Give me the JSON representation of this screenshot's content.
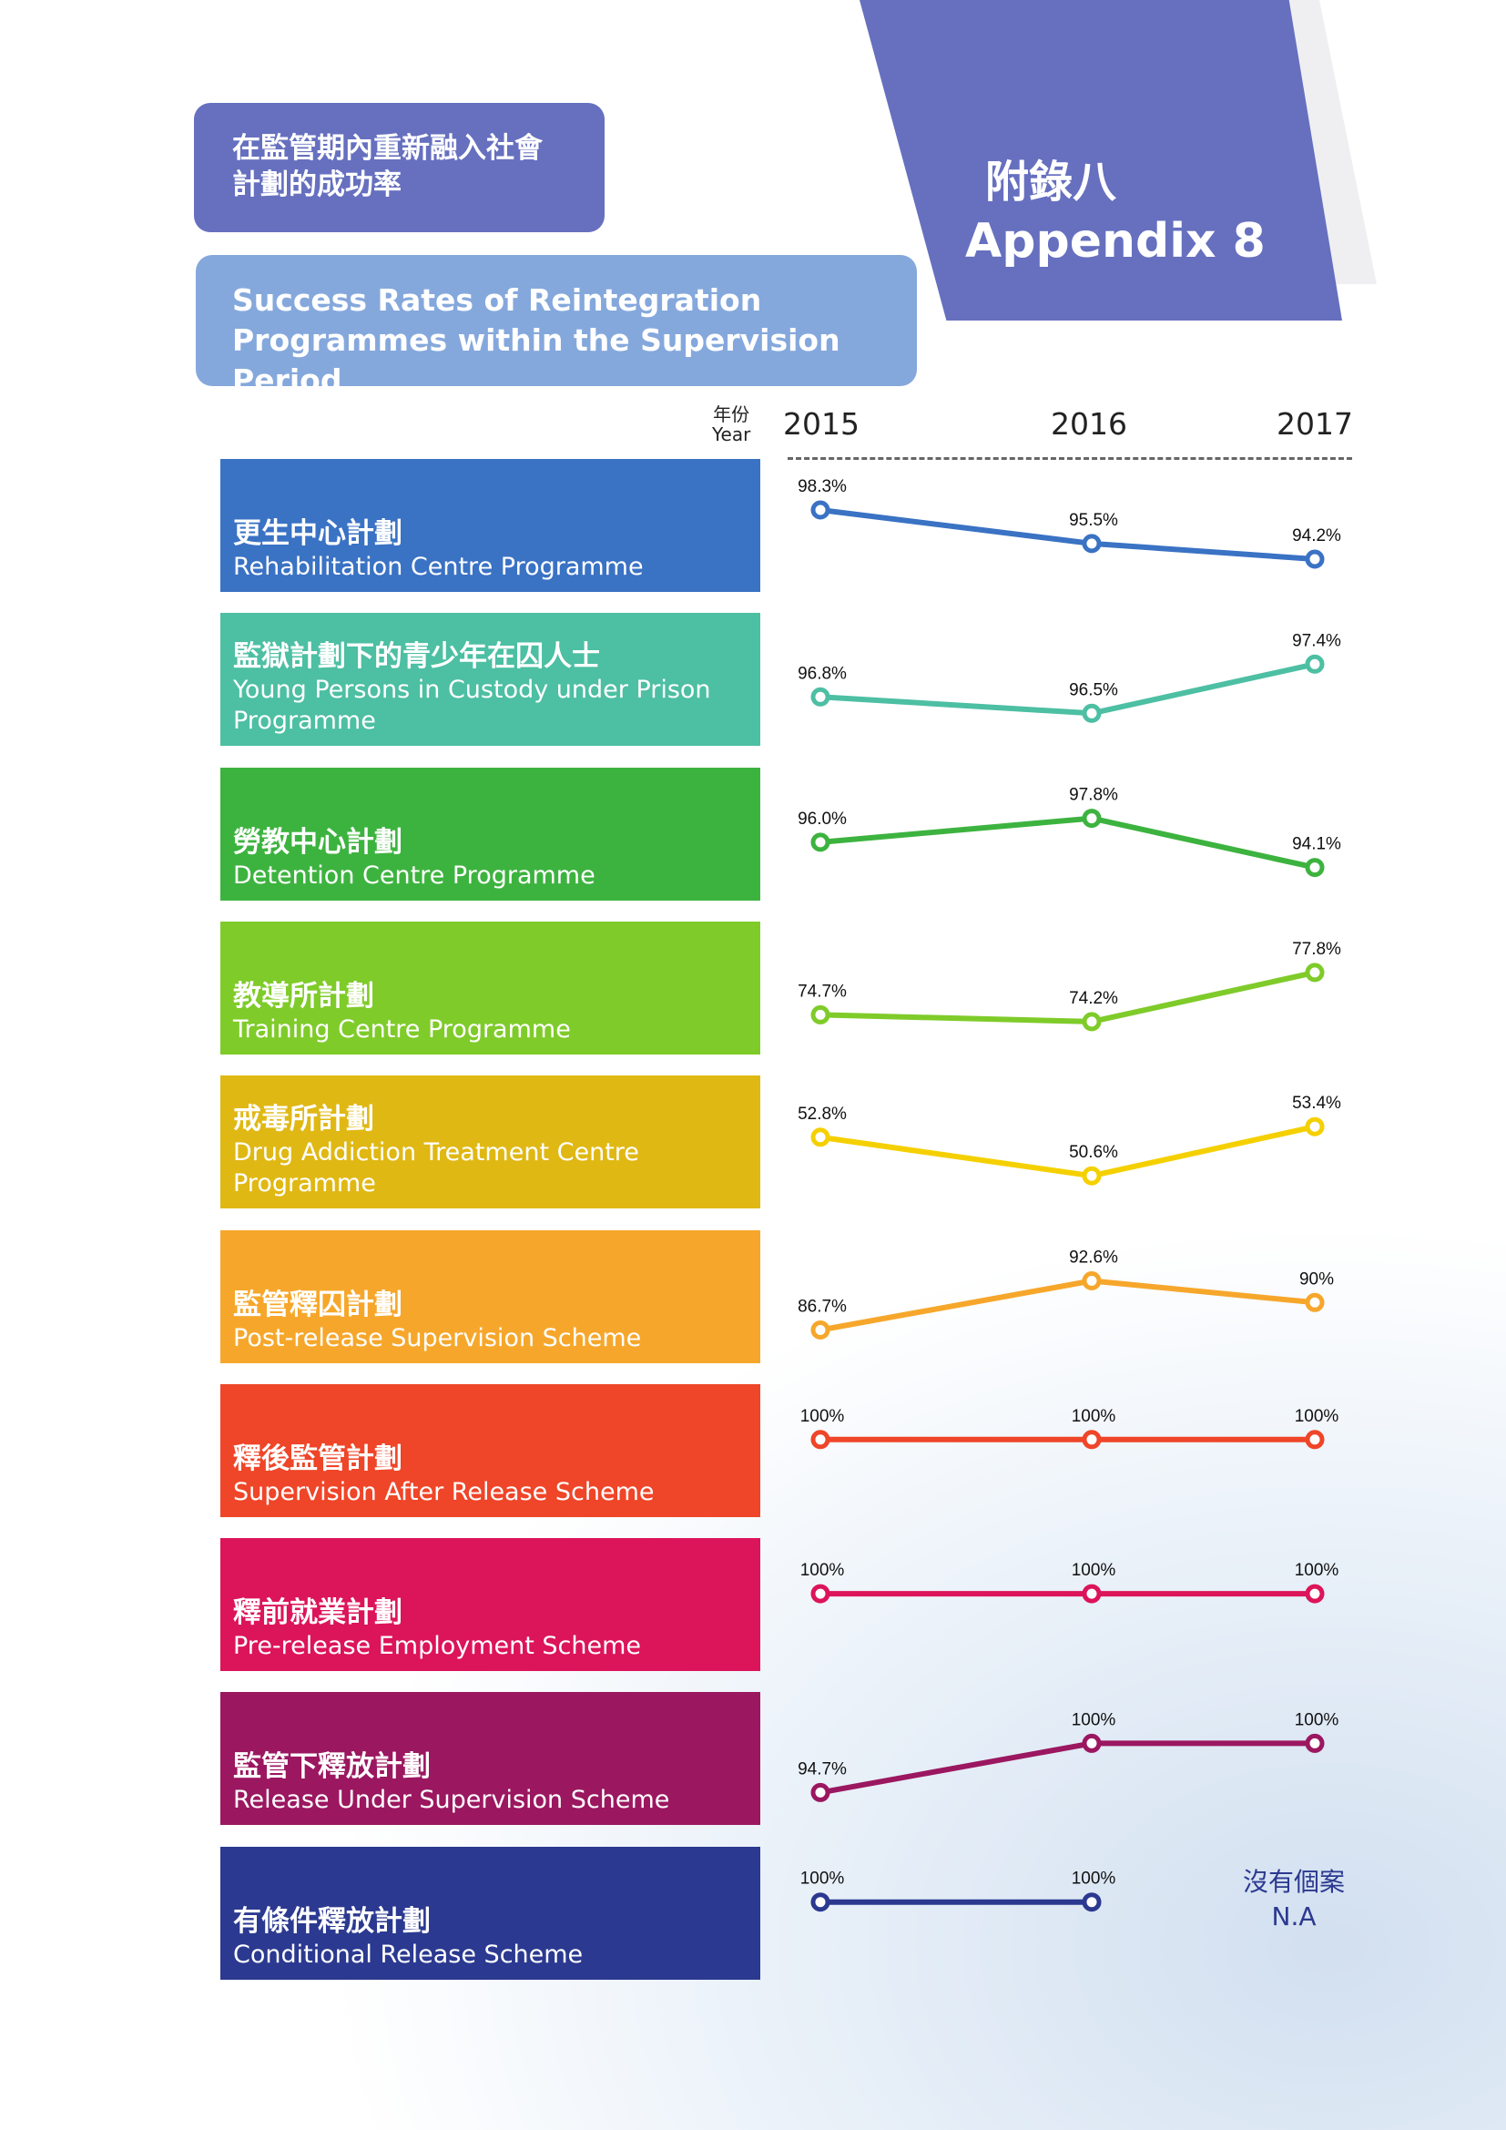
{
  "header": {
    "title_zh": "在監管期內重新融入社會計劃的成功率",
    "title_zh_line1": "在監管期內重新融入社會",
    "title_zh_line2": "計劃的成功率",
    "title_en_line1": "Success Rates of Reintegration",
    "title_en_line2": "Programmes within the Supervision Period",
    "appendix_zh": "附錄八",
    "appendix_en": "Appendix 8"
  },
  "chart_data": {
    "type": "line",
    "x_label_zh": "年份",
    "x_label_en": "Year",
    "x": [
      "2015",
      "2016",
      "2017"
    ],
    "grid": false,
    "series": [
      {
        "name_zh": "更生中心計劃",
        "name": "Rehabilitation Centre Programme",
        "color": "#3a72c4",
        "values": [
          98.3,
          95.5,
          94.2
        ],
        "labels": [
          "98.3%",
          "95.5%",
          "94.2%"
        ]
      },
      {
        "name_zh": "監獄計劃下的青少年在囚人士",
        "name": "Young Persons in Custody under Prison Programme",
        "color": "#4dbfa3",
        "values": [
          96.8,
          96.5,
          97.4
        ],
        "labels": [
          "96.8%",
          "96.5%",
          "97.4%"
        ]
      },
      {
        "name_zh": "勞教中心計劃",
        "name": "Detention Centre Programme",
        "color": "#3db33f",
        "values": [
          96.0,
          97.8,
          94.1
        ],
        "labels": [
          "96.0%",
          "97.8%",
          "94.1%"
        ]
      },
      {
        "name_zh": "教導所計劃",
        "name": "Training Centre Programme",
        "color": "#7fcb2a",
        "values": [
          74.7,
          74.2,
          77.8
        ],
        "labels": [
          "74.7%",
          "74.2%",
          "77.8%"
        ]
      },
      {
        "name_zh": "戒毒所計劃",
        "name": "Drug Addiction Treatment Centre Programme",
        "color": "#e0b814",
        "line_color": "#f5d000",
        "values": [
          52.8,
          50.6,
          53.4
        ],
        "labels": [
          "52.8%",
          "50.6%",
          "53.4%"
        ]
      },
      {
        "name_zh": "監管釋囚計劃",
        "name": "Post-release Supervision Scheme",
        "color": "#f6a72b",
        "values": [
          86.7,
          92.6,
          90
        ],
        "labels": [
          "86.7%",
          "92.6%",
          "90%"
        ]
      },
      {
        "name_zh": "釋後監管計劃",
        "name": "Supervision After Release Scheme",
        "color": "#ef4528",
        "values": [
          100,
          100,
          100
        ],
        "labels": [
          "100%",
          "100%",
          "100%"
        ]
      },
      {
        "name_zh": "釋前就業計劃",
        "name": "Pre-release Employment Scheme",
        "color": "#dc1459",
        "values": [
          100,
          100,
          100
        ],
        "labels": [
          "100%",
          "100%",
          "100%"
        ]
      },
      {
        "name_zh": "監管下釋放計劃",
        "name": "Release Under Supervision Scheme",
        "color": "#9b1760",
        "values": [
          94.7,
          100,
          100
        ],
        "labels": [
          "94.7%",
          "100%",
          "100%"
        ]
      },
      {
        "name_zh": "有條件釋放計劃",
        "name": "Conditional Release Scheme",
        "color": "#2b3990",
        "values": [
          100,
          100,
          null
        ],
        "labels": [
          "100%",
          "100%",
          ""
        ]
      }
    ],
    "na_label_zh": "沒有個案",
    "na_label_en": "N.A"
  }
}
